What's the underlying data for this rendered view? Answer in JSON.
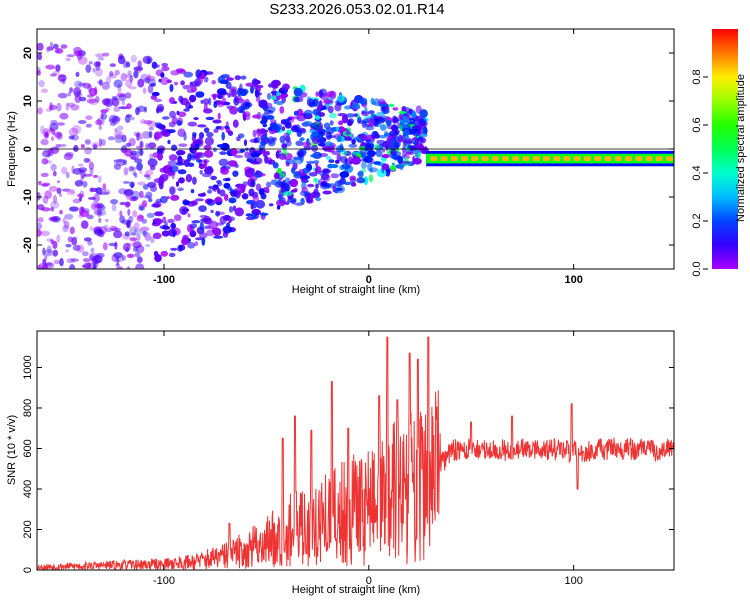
{
  "figure_title": "S233.2026.053.02.01.R14",
  "chart_data": [
    {
      "type": "heatmap",
      "name": "spectrogram",
      "title": "",
      "xlabel": "Height of straight line (km)",
      "ylabel": "Frequency (Hz)",
      "xlim": [
        -162,
        149
      ],
      "ylim": [
        -25,
        25
      ],
      "x_ticks": [
        "-100",
        "0",
        "100"
      ],
      "y_ticks": [
        "-20",
        "-10",
        "0",
        "10",
        "20"
      ],
      "colorbar": {
        "label": "Normalized spectral amplitude",
        "range": [
          0.0,
          1.0
        ],
        "ticks": [
          "0.0",
          "0.2",
          "0.4",
          "0.6",
          "0.8"
        ]
      },
      "tone_frequency_hz": -2,
      "tone_start_km": 28,
      "tone_amplitude_max": 0.85,
      "band_center_start_hz": -5,
      "band_center_end_hz": 3
    },
    {
      "type": "line",
      "name": "snr",
      "title": "",
      "xlabel": "Height of straight line (km)",
      "ylabel": "SNR (10 * v/v)",
      "xlim": [
        -162,
        149
      ],
      "ylim": [
        0,
        1180
      ],
      "x_ticks": [
        "-100",
        "0",
        "100"
      ],
      "y_ticks": [
        "0",
        "200",
        "400",
        "600",
        "800",
        "1000"
      ],
      "color": "#ee3333",
      "series": [
        {
          "name": "SNR",
          "x": [
            -162,
            -140,
            -120,
            -100,
            -90,
            -80,
            -70,
            -60,
            -50,
            -40,
            -30,
            -20,
            -10,
            0,
            10,
            20,
            30,
            40,
            50,
            60,
            70,
            80,
            90,
            100,
            110,
            120,
            130,
            140,
            149
          ],
          "y": [
            15,
            20,
            25,
            30,
            38,
            50,
            70,
            100,
            140,
            190,
            220,
            250,
            290,
            330,
            370,
            410,
            440,
            590,
            595,
            595,
            590,
            600,
            595,
            585,
            590,
            600,
            595,
            590,
            600
          ]
        },
        {
          "name": "peaks",
          "x": [
            -68,
            -42,
            -36,
            -28,
            -18,
            -10,
            5,
            9,
            14,
            20,
            24,
            29,
            50,
            70,
            99,
            102
          ],
          "y": [
            230,
            650,
            760,
            690,
            930,
            700,
            860,
            1150,
            840,
            1070,
            1040,
            1150,
            730,
            760,
            820,
            400
          ]
        }
      ]
    }
  ]
}
